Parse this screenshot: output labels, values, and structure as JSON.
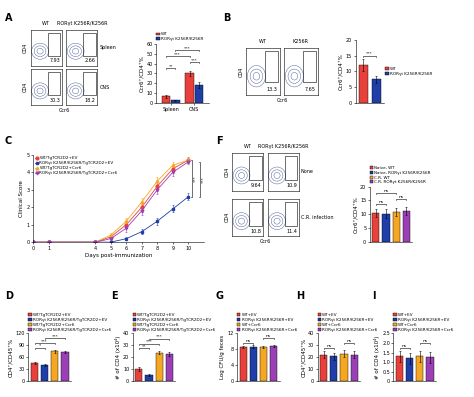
{
  "panel_labels": [
    "A",
    "B",
    "C",
    "D",
    "E",
    "F",
    "G",
    "H",
    "I"
  ],
  "flow_plots": [
    {
      "panel": "A",
      "columns": [
        "WT",
        "RORγt K256R/K256R"
      ],
      "rows": [
        "Spleen",
        "CNS"
      ],
      "percentages": [
        [
          7.93,
          2.66
        ],
        [
          30.3,
          18.2
        ]
      ],
      "x_label": "Ccr6",
      "y_label": "CD4"
    },
    {
      "panel": "B",
      "columns": [
        "WT",
        "K256R"
      ],
      "rows": [
        null
      ],
      "percentages": [
        [
          13.3,
          7.65
        ]
      ],
      "x_label": "Ccr6",
      "y_label": "CD4"
    },
    {
      "panel": "F",
      "columns": [
        "WT",
        "RORγt K256R/K256R"
      ],
      "rows": [
        "None",
        "C.R. infection"
      ],
      "percentages": [
        [
          9.64,
          10.9
        ],
        [
          10.8,
          11.4
        ]
      ],
      "x_label": "Ccr6",
      "y_label": "CD4"
    }
  ],
  "chart_data": [
    {
      "panel": "A",
      "type": "bar",
      "y_label": "Ccr6⁺/CD4⁺%",
      "categories": [
        "Spleen",
        "CNS"
      ],
      "series": [
        {
          "name": "WT",
          "color": "#e8413c",
          "values": [
            7.0,
            30.0
          ],
          "errors": [
            1.5,
            2.5
          ]
        },
        {
          "name": "RORγt K256R/K256R",
          "color": "#1f3ea8",
          "values": [
            2.8,
            18.0
          ],
          "errors": [
            0.8,
            3.0
          ]
        }
      ],
      "ylim": [
        0,
        60
      ],
      "yticks": [
        0,
        10,
        20,
        30,
        40,
        50,
        60
      ],
      "legend": "above",
      "comparisons": [
        {
          "between": [
            [
              0,
              0
            ],
            [
              1,
              0
            ]
          ],
          "label": "**"
        },
        {
          "between": [
            [
              0,
              1
            ],
            [
              1,
              1
            ]
          ],
          "label": "***"
        },
        {
          "between": [
            [
              0,
              0
            ],
            [
              0,
              1
            ]
          ],
          "label": "***"
        },
        {
          "between": [
            [
              1,
              0
            ],
            [
              1,
              1
            ]
          ],
          "label": "***"
        }
      ]
    },
    {
      "panel": "B",
      "type": "bar",
      "y_label": "Ccr6⁺/CD4⁺%",
      "tick_labels": "y",
      "series": [
        {
          "name": "WT",
          "color": "#e8413c",
          "values": [
            12.0
          ],
          "errors": [
            2.0
          ]
        },
        {
          "name": "RORγt K256R/K256R",
          "color": "#1f3ea8",
          "values": [
            7.5
          ],
          "errors": [
            1.0
          ]
        }
      ],
      "ylim": [
        0,
        20
      ],
      "yticks": [
        0,
        5,
        10,
        15,
        20
      ],
      "legend": "right",
      "comparisons": [
        {
          "between": [
            [
              0,
              0
            ],
            [
              1,
              0
            ]
          ],
          "label": "***"
        }
      ]
    },
    {
      "panel": "C",
      "type": "line",
      "x_label": "Days post-immunization",
      "y_label": "Clinical Score",
      "x": [
        0,
        1,
        4,
        5,
        6,
        7,
        8,
        9,
        10
      ],
      "series": [
        {
          "name": "WT/TgTCR2D2+EV",
          "color": "#e8413c",
          "marker": "circle",
          "values": [
            0,
            0,
            0,
            0.3,
            1.0,
            2.0,
            3.2,
            4.2,
            4.7
          ],
          "errors": [
            0,
            0,
            0,
            0.1,
            0.2,
            0.25,
            0.25,
            0.2,
            0.15
          ]
        },
        {
          "name": "RORγt K256R/K256R/TgTCR2D2+EV",
          "color": "#1f3ea8",
          "marker": "square",
          "values": [
            0,
            0,
            0,
            0,
            0.2,
            0.6,
            1.2,
            1.9,
            2.6
          ],
          "errors": [
            0,
            0,
            0,
            0,
            0.1,
            0.15,
            0.2,
            0.2,
            0.2
          ]
        },
        {
          "name": "WT/TgTCR2D2+Ccr6",
          "color": "#f5a623",
          "marker": "triangle_up",
          "values": [
            0,
            0,
            0,
            0.4,
            1.2,
            2.3,
            3.5,
            4.4,
            4.7
          ],
          "errors": [
            0,
            0,
            0,
            0.1,
            0.2,
            0.25,
            0.25,
            0.2,
            0.15
          ]
        },
        {
          "name": "RORγt K256R/K256R/TgTCR2D2+Ccr6",
          "color": "#9b3fb5",
          "marker": "triangle_down",
          "values": [
            0,
            0,
            0,
            0.2,
            0.8,
            1.8,
            3.0,
            4.0,
            4.6
          ],
          "errors": [
            0,
            0,
            0,
            0.1,
            0.2,
            0.25,
            0.25,
            0.2,
            0.15
          ]
        }
      ],
      "xlim": [
        0,
        11
      ],
      "xticks": [
        0,
        1,
        4,
        5,
        6,
        7,
        8,
        9,
        10
      ],
      "ylim": [
        0,
        5
      ],
      "yticks": [
        0,
        1,
        2,
        3,
        4,
        5
      ],
      "legend": "upper left",
      "comparisons": [
        {
          "between": [
            0,
            1
          ],
          "label": "***"
        },
        {
          "between": [
            1,
            3
          ],
          "label": "***"
        }
      ]
    },
    {
      "panel": "D",
      "type": "bar",
      "y_label": "CD4⁺/CD45⁺%",
      "tick_labels": "y",
      "series": [
        {
          "name": "WT/TgTCR2D2+EV",
          "color": "#e8413c",
          "values": [
            45.0
          ],
          "errors": [
            3.0
          ]
        },
        {
          "name": "RORγt K256R/K256R/TgTCR2D2+EV",
          "color": "#1f3ea8",
          "values": [
            40.0
          ],
          "errors": [
            3.0
          ]
        },
        {
          "name": "WT/TgTCR2D2+Ccr6",
          "color": "#f5a623",
          "values": [
            75.0
          ],
          "errors": [
            3.0
          ]
        },
        {
          "name": "RORγt K256R/K256R/TgTCR2D2+Ccr6",
          "color": "#9b3fb5",
          "values": [
            73.0
          ],
          "errors": [
            3.0
          ]
        }
      ],
      "ylim": [
        0,
        120
      ],
      "yticks": [
        0,
        30,
        60,
        90,
        120
      ],
      "legend": "above",
      "comparisons": [
        {
          "between": [
            [
              0,
              0
            ],
            [
              1,
              0
            ]
          ],
          "label": "*"
        },
        {
          "between": [
            [
              0,
              0
            ],
            [
              2,
              0
            ]
          ],
          "label": "***"
        },
        {
          "between": [
            [
              1,
              0
            ],
            [
              3,
              0
            ]
          ],
          "label": "***"
        }
      ]
    },
    {
      "panel": "E",
      "type": "bar",
      "y_label": "# of CD4 (x10⁴)",
      "tick_labels": "y",
      "series": [
        {
          "name": "WT/TgTCR2D2+EV",
          "color": "#e8413c",
          "values": [
            10.0
          ],
          "errors": [
            1.5
          ]
        },
        {
          "name": "RORγt K256R/K256R/TgTCR2D2+EV",
          "color": "#1f3ea8",
          "values": [
            5.0
          ],
          "errors": [
            1.0
          ]
        },
        {
          "name": "WT/TgTCR2D2+Ccr6",
          "color": "#f5a623",
          "values": [
            24.0
          ],
          "errors": [
            1.5
          ]
        },
        {
          "name": "RORγt K256R/K256R/TgTCR2D2+Ccr6",
          "color": "#9b3fb5",
          "values": [
            23.0
          ],
          "errors": [
            1.5
          ]
        }
      ],
      "ylim": [
        0,
        40
      ],
      "yticks": [
        0,
        10,
        20,
        30,
        40
      ],
      "legend": "above",
      "comparisons": [
        {
          "between": [
            [
              0,
              0
            ],
            [
              1,
              0
            ]
          ],
          "label": "**"
        },
        {
          "between": [
            [
              0,
              0
            ],
            [
              2,
              0
            ]
          ],
          "label": "***"
        },
        {
          "between": [
            [
              1,
              0
            ],
            [
              3,
              0
            ]
          ],
          "label": "***"
        }
      ]
    },
    {
      "panel": "F",
      "type": "bar",
      "y_label": "Ccr6⁺/CD4⁺%",
      "tick_labels": "y",
      "series": [
        {
          "name": "Naive, WT",
          "color": "#e8413c",
          "values": [
            10.5
          ],
          "errors": [
            1.5
          ]
        },
        {
          "name": "Naive, RORγt K256R/K256R",
          "color": "#1f3ea8",
          "values": [
            10.3
          ],
          "errors": [
            1.5
          ]
        },
        {
          "name": "C.R, WT",
          "color": "#f5a623",
          "values": [
            10.8
          ],
          "errors": [
            1.5
          ]
        },
        {
          "name": "C.R, RORγt K256R/K256R",
          "color": "#9b3fb5",
          "values": [
            11.2
          ],
          "errors": [
            1.5
          ]
        }
      ],
      "ylim": [
        0,
        20
      ],
      "yticks": [
        0,
        5,
        10,
        15,
        20
      ],
      "legend": "above",
      "comparisons": [
        {
          "between": [
            [
              0,
              0
            ],
            [
              1,
              0
            ]
          ],
          "label": "ns"
        },
        {
          "between": [
            [
              2,
              0
            ],
            [
              3,
              0
            ]
          ],
          "label": "ns"
        },
        {
          "between": [
            [
              0,
              0
            ],
            [
              2,
              0
            ]
          ],
          "label": "ns"
        }
      ]
    },
    {
      "panel": "G",
      "type": "bar",
      "y_label": "Log CFU/g feces",
      "tick_labels": "y",
      "series": [
        {
          "name": "WT+EV",
          "color": "#e8413c",
          "values": [
            8.6
          ],
          "errors": [
            0.3
          ]
        },
        {
          "name": "RORγt K256R/K256R+EV",
          "color": "#1f3ea8",
          "values": [
            8.7
          ],
          "errors": [
            0.3
          ]
        },
        {
          "name": "WT+Ccr6",
          "color": "#f5a623",
          "values": [
            8.6
          ],
          "errors": [
            0.3
          ]
        },
        {
          "name": "RORγt K256R/K256R+Ccr6",
          "color": "#9b3fb5",
          "values": [
            8.8
          ],
          "errors": [
            0.3
          ]
        }
      ],
      "ylim": [
        0,
        12
      ],
      "yticks": [
        0,
        4,
        8,
        12
      ],
      "legend": "above",
      "comparisons": [
        {
          "between": [
            [
              0,
              0
            ],
            [
              1,
              0
            ]
          ],
          "label": "ns"
        },
        {
          "between": [
            [
              2,
              0
            ],
            [
              3,
              0
            ]
          ],
          "label": "ns"
        }
      ]
    },
    {
      "panel": "H",
      "type": "bar",
      "y_label": "CD4⁺/CD45⁺%",
      "tick_labels": "y",
      "series": [
        {
          "name": "WT+EV",
          "color": "#e8413c",
          "values": [
            22.0
          ],
          "errors": [
            3.0
          ]
        },
        {
          "name": "RORγt K256R/K256R+EV",
          "color": "#1f3ea8",
          "values": [
            21.0
          ],
          "errors": [
            3.0
          ]
        },
        {
          "name": "WT+Ccr6",
          "color": "#f5a623",
          "values": [
            23.0
          ],
          "errors": [
            3.0
          ]
        },
        {
          "name": "RORγt K256R/K256R+Ccr6",
          "color": "#9b3fb5",
          "values": [
            22.0
          ],
          "errors": [
            3.0
          ]
        }
      ],
      "ylim": [
        0,
        40
      ],
      "yticks": [
        0,
        10,
        20,
        30,
        40
      ],
      "legend": "above",
      "comparisons": [
        {
          "between": [
            [
              0,
              0
            ],
            [
              1,
              0
            ]
          ],
          "label": "ns"
        },
        {
          "between": [
            [
              2,
              0
            ],
            [
              3,
              0
            ]
          ],
          "label": "ns"
        }
      ]
    },
    {
      "panel": "I",
      "type": "bar",
      "y_label": "# of CD4 (x10⁴)",
      "tick_labels": "y",
      "series": [
        {
          "name": "WT+EV",
          "color": "#e8413c",
          "values": [
            1.3
          ],
          "errors": [
            0.3
          ]
        },
        {
          "name": "RORγt K256R/K256R+EV",
          "color": "#1f3ea8",
          "values": [
            1.2
          ],
          "errors": [
            0.3
          ]
        },
        {
          "name": "WT+Ccr6",
          "color": "#f5a623",
          "values": [
            1.3
          ],
          "errors": [
            0.3
          ]
        },
        {
          "name": "RORγt K256R/K256R+Ccr6",
          "color": "#9b3fb5",
          "values": [
            1.25
          ],
          "errors": [
            0.3
          ]
        }
      ],
      "ylim": [
        0,
        2.5
      ],
      "yticks": [
        0,
        0.5,
        {
          "value": 1,
          "label": "1.0"
        },
        1.5,
        {
          "value": 2,
          "label": "2.0"
        },
        2.5
      ],
      "legend": "above",
      "comparisons": [
        {
          "between": [
            [
              0,
              0
            ],
            [
              1,
              0
            ]
          ],
          "label": "ns"
        },
        {
          "between": [
            [
              2,
              0
            ],
            [
              3,
              0
            ]
          ],
          "label": "ns"
        }
      ]
    }
  ]
}
